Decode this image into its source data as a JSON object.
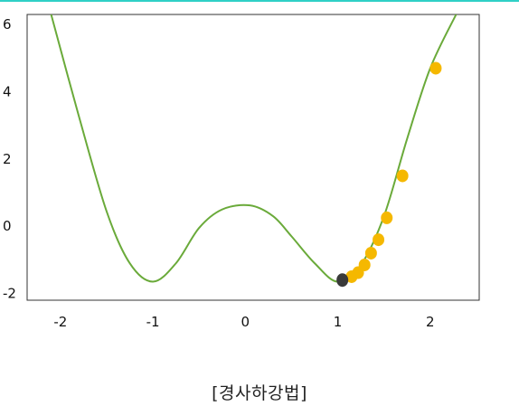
{
  "caption": "[경사하강법]",
  "colors": {
    "accent_rule": "#2fd0c6",
    "curve": "#6aaa3a",
    "steps": "#f5b800",
    "current_point": "#3a3a3a",
    "axes": "#333333"
  },
  "chart_data": {
    "type": "line",
    "title": "",
    "xlabel": "",
    "ylabel": "",
    "xlim": [
      -2.36,
      2.53
    ],
    "ylim": [
      -2.2,
      6.3
    ],
    "x_ticks": [
      -2,
      -1,
      0,
      1,
      2
    ],
    "y_ticks": [
      -2,
      0,
      2,
      4,
      6
    ],
    "x_tick_labels": [
      "-2",
      "-1",
      "0",
      "1",
      "2"
    ],
    "y_tick_labels": [
      "-2",
      "0",
      "2",
      "4",
      "6"
    ],
    "grid": false,
    "legend": "none",
    "series": [
      {
        "kind": "curve",
        "x_range": [
          -2.1,
          2.28
        ],
        "formula_points": [
          [
            -2.1,
            6.3
          ],
          [
            -1.8,
            3.27
          ],
          [
            -1.5,
            0.44
          ],
          [
            -1.25,
            -1.1
          ],
          [
            -1.0,
            -1.65
          ],
          [
            -0.75,
            -1.1
          ],
          [
            -0.5,
            -0.05
          ],
          [
            -0.25,
            0.5
          ],
          [
            0.05,
            0.62
          ],
          [
            0.3,
            0.3
          ],
          [
            0.5,
            -0.3
          ],
          [
            0.75,
            -1.1
          ],
          [
            1.0,
            -1.65
          ],
          [
            1.25,
            -1.15
          ],
          [
            1.5,
            0.3
          ],
          [
            1.75,
            2.6
          ],
          [
            2.0,
            4.7
          ],
          [
            2.28,
            6.3
          ]
        ]
      },
      {
        "kind": "gradient-steps",
        "points": [
          [
            2.06,
            4.7
          ],
          [
            1.7,
            1.5
          ],
          [
            1.53,
            0.25
          ],
          [
            1.44,
            -0.4
          ],
          [
            1.36,
            -0.8
          ],
          [
            1.29,
            -1.15
          ],
          [
            1.22,
            -1.38
          ],
          [
            1.15,
            -1.5
          ]
        ]
      },
      {
        "kind": "current-point",
        "points": [
          [
            1.05,
            -1.6
          ]
        ]
      }
    ]
  }
}
